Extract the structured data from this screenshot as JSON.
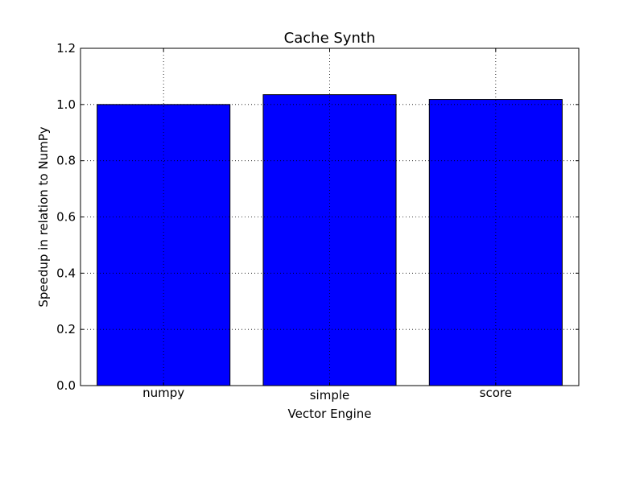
{
  "chart_data": {
    "type": "bar",
    "title": "Cache Synth",
    "xlabel": "Vector Engine",
    "ylabel": "Speedup in relation to NumPy",
    "categories": [
      "numpy",
      "simple",
      "score"
    ],
    "values": [
      1.0,
      1.035,
      1.018
    ],
    "ylim": [
      0,
      1.2
    ],
    "yticks": [
      "0.0",
      "0.2",
      "0.4",
      "0.6",
      "0.8",
      "1.0",
      "1.2"
    ],
    "grid": true,
    "bar_color": "#0000ff"
  }
}
